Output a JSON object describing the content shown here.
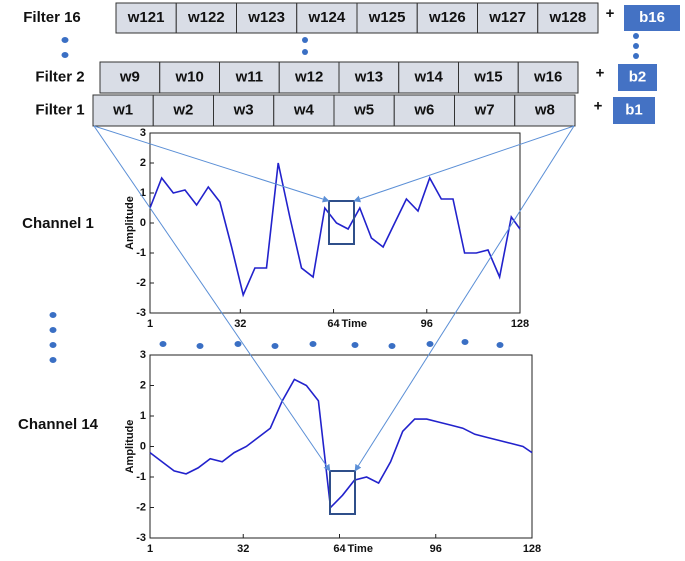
{
  "filters": [
    {
      "label": "Filter 16",
      "weights": [
        "w121",
        "w122",
        "w123",
        "w124",
        "w125",
        "w126",
        "w127",
        "w128"
      ],
      "bias": "b16"
    },
    {
      "label": "Filter 2",
      "weights": [
        "w9",
        "w10",
        "w11",
        "w12",
        "w13",
        "w14",
        "w15",
        "w16"
      ],
      "bias": "b2"
    },
    {
      "label": "Filter 1",
      "weights": [
        "w1",
        "w2",
        "w3",
        "w4",
        "w5",
        "w6",
        "w7",
        "w8"
      ],
      "bias": "b1"
    }
  ],
  "plus": "+",
  "charts": [
    {
      "type": "line",
      "label": "Channel 1",
      "xlabel": "Time",
      "ylabel": "Amplitude",
      "color": "#2222cc",
      "x": [
        1,
        5,
        9,
        13,
        17,
        21,
        25,
        29,
        33,
        37,
        41,
        45,
        49,
        53,
        57,
        61,
        65,
        69,
        73,
        77,
        81,
        85,
        89,
        93,
        97,
        101,
        105,
        109,
        113,
        117,
        121,
        125,
        128
      ],
      "values": [
        0.5,
        1.5,
        1.0,
        1.1,
        0.6,
        1.2,
        0.7,
        -0.8,
        -2.4,
        -1.5,
        -1.5,
        2.0,
        0.2,
        -1.5,
        -1.8,
        0.5,
        0.0,
        -0.2,
        0.5,
        -0.5,
        -0.8,
        0.0,
        0.8,
        0.4,
        1.5,
        0.8,
        0.8,
        -1.0,
        -1.0,
        -0.9,
        -1.8,
        0.2,
        -0.2
      ],
      "xlim": [
        1,
        128
      ],
      "ylim": [
        -3,
        3
      ],
      "xticks": [
        1,
        32,
        64,
        96,
        128
      ],
      "yticks": [
        -3,
        -2,
        -1,
        0,
        1,
        2,
        3
      ]
    },
    {
      "type": "line",
      "label": "Channel 14",
      "xlabel": "Time",
      "ylabel": "Amplitude",
      "color": "#2222cc",
      "x": [
        1,
        5,
        9,
        13,
        17,
        21,
        25,
        29,
        33,
        37,
        41,
        45,
        49,
        53,
        57,
        61,
        65,
        69,
        73,
        77,
        81,
        85,
        89,
        93,
        97,
        101,
        105,
        109,
        113,
        117,
        121,
        125,
        128
      ],
      "values": [
        -0.2,
        -0.5,
        -0.8,
        -0.9,
        -0.7,
        -0.4,
        -0.5,
        -0.2,
        0.0,
        0.3,
        0.6,
        1.5,
        2.2,
        2.0,
        1.5,
        -2.0,
        -1.6,
        -1.1,
        -1.0,
        -1.2,
        -0.5,
        0.5,
        0.9,
        0.9,
        0.8,
        0.7,
        0.6,
        0.4,
        0.3,
        0.2,
        0.1,
        0.0,
        -0.2
      ],
      "xlim": [
        1,
        128
      ],
      "ylim": [
        -3,
        3
      ],
      "xticks": [
        1,
        32,
        64,
        96,
        128
      ],
      "yticks": [
        -3,
        -2,
        -1,
        0,
        1,
        2,
        3
      ]
    }
  ]
}
